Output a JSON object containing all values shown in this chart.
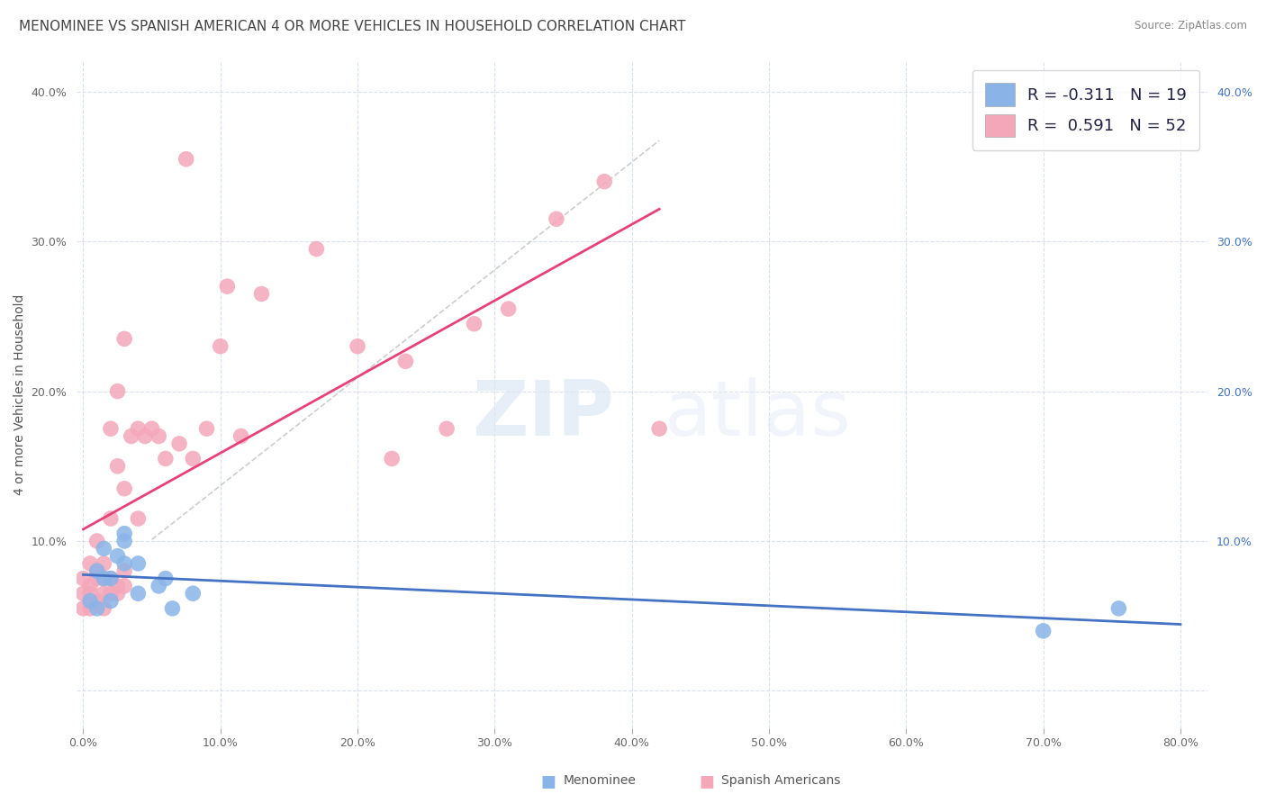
{
  "title": "MENOMINEE VS SPANISH AMERICAN 4 OR MORE VEHICLES IN HOUSEHOLD CORRELATION CHART",
  "source": "Source: ZipAtlas.com",
  "ylabel": "4 or more Vehicles in Household",
  "xlim": [
    -0.005,
    0.82
  ],
  "ylim": [
    -0.025,
    0.42
  ],
  "xticks": [
    0.0,
    0.1,
    0.2,
    0.3,
    0.4,
    0.5,
    0.6,
    0.7,
    0.8
  ],
  "xticklabels": [
    "0.0%",
    "10.0%",
    "20.0%",
    "30.0%",
    "40.0%",
    "50.0%",
    "60.0%",
    "70.0%",
    "80.0%"
  ],
  "yticks": [
    0.0,
    0.1,
    0.2,
    0.3,
    0.4
  ],
  "yticklabels_left": [
    "",
    "10.0%",
    "20.0%",
    "30.0%",
    "40.0%"
  ],
  "yticklabels_right": [
    "",
    "10.0%",
    "20.0%",
    "30.0%",
    "40.0%"
  ],
  "menominee_color": "#8ab4e8",
  "spanish_color": "#f4a7b9",
  "menominee_line_color": "#4472c4",
  "spanish_line_color": "#e8417a",
  "trend_line_dash_color": "#c8c8c8",
  "background_color": "#ffffff",
  "grid_color": "#d0d8e8",
  "menominee_x": [
    0.005,
    0.01,
    0.01,
    0.015,
    0.015,
    0.02,
    0.02,
    0.025,
    0.03,
    0.03,
    0.03,
    0.04,
    0.04,
    0.055,
    0.06,
    0.065,
    0.08,
    0.7,
    0.755
  ],
  "menominee_y": [
    0.06,
    0.055,
    0.08,
    0.075,
    0.095,
    0.06,
    0.075,
    0.09,
    0.1,
    0.085,
    0.105,
    0.085,
    0.065,
    0.07,
    0.075,
    0.055,
    0.065,
    0.04,
    0.055
  ],
  "spanish_x": [
    0.0,
    0.0,
    0.0,
    0.005,
    0.005,
    0.005,
    0.005,
    0.01,
    0.01,
    0.01,
    0.01,
    0.015,
    0.015,
    0.015,
    0.015,
    0.02,
    0.02,
    0.02,
    0.02,
    0.025,
    0.025,
    0.025,
    0.025,
    0.03,
    0.03,
    0.03,
    0.03,
    0.035,
    0.04,
    0.04,
    0.045,
    0.05,
    0.055,
    0.06,
    0.07,
    0.075,
    0.08,
    0.09,
    0.1,
    0.105,
    0.115,
    0.13,
    0.17,
    0.2,
    0.225,
    0.235,
    0.265,
    0.285,
    0.31,
    0.345,
    0.38,
    0.42
  ],
  "spanish_y": [
    0.055,
    0.065,
    0.075,
    0.055,
    0.065,
    0.07,
    0.085,
    0.06,
    0.075,
    0.08,
    0.1,
    0.055,
    0.065,
    0.075,
    0.085,
    0.065,
    0.075,
    0.115,
    0.175,
    0.065,
    0.07,
    0.15,
    0.2,
    0.07,
    0.08,
    0.135,
    0.235,
    0.17,
    0.115,
    0.175,
    0.17,
    0.175,
    0.17,
    0.155,
    0.165,
    0.355,
    0.155,
    0.175,
    0.23,
    0.27,
    0.17,
    0.265,
    0.295,
    0.23,
    0.155,
    0.22,
    0.175,
    0.245,
    0.255,
    0.315,
    0.34,
    0.175
  ],
  "watermark_zip": "ZIP",
  "watermark_atlas": "atlas",
  "title_fontsize": 11,
  "label_fontsize": 10,
  "tick_fontsize": 9,
  "legend_fontsize": 13
}
